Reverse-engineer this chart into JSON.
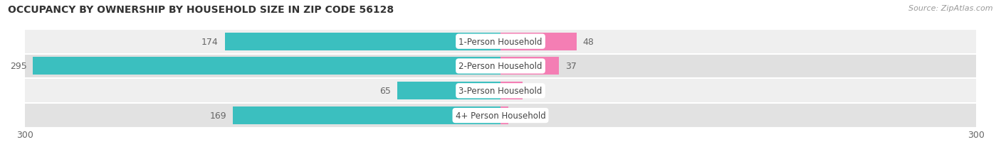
{
  "title": "OCCUPANCY BY OWNERSHIP BY HOUSEHOLD SIZE IN ZIP CODE 56128",
  "source": "Source: ZipAtlas.com",
  "categories": [
    "1-Person Household",
    "2-Person Household",
    "3-Person Household",
    "4+ Person Household"
  ],
  "owner_values": [
    174,
    295,
    65,
    169
  ],
  "renter_values": [
    48,
    37,
    14,
    5
  ],
  "owner_color": "#3BBFBF",
  "renter_color": "#F47EB4",
  "owner_color_dark": "#2AABAB",
  "renter_color_dark": "#EF5A9D",
  "row_bg_colors": [
    "#EFEFEF",
    "#E0E0E0",
    "#EFEFEF",
    "#E2E2E2"
  ],
  "xlim": 300,
  "label_color": "#666666",
  "cat_label_color": "#444444",
  "title_fontsize": 10,
  "source_fontsize": 8,
  "tick_fontsize": 9,
  "bar_label_fontsize": 9,
  "category_fontsize": 8.5,
  "legend_fontsize": 9,
  "background_color": "#FFFFFF",
  "bar_height": 0.72,
  "fig_width": 14.06,
  "fig_height": 2.32,
  "dpi": 100
}
